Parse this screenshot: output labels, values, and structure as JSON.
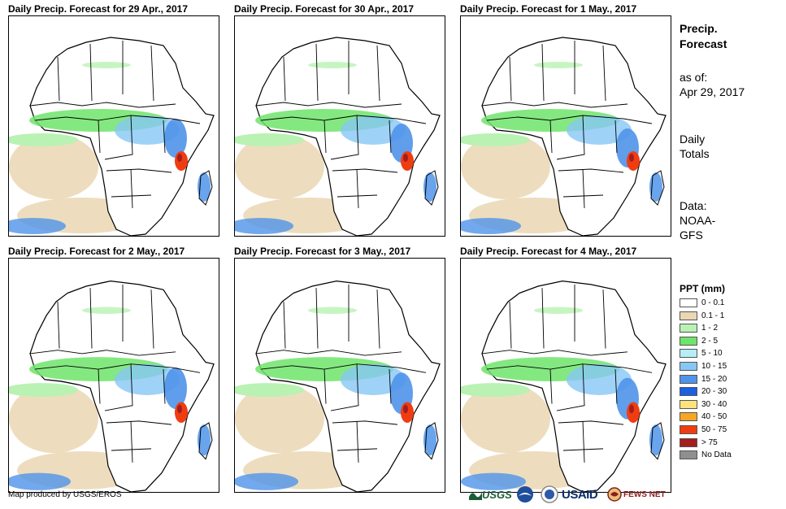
{
  "panels": [
    {
      "title": "Daily Precip. Forecast for 29 Apr., 2017"
    },
    {
      "title": "Daily Precip. Forecast for 30 Apr., 2017"
    },
    {
      "title": "Daily Precip. Forecast for 1 May., 2017"
    },
    {
      "title": "Daily Precip. Forecast for 2 May., 2017"
    },
    {
      "title": "Daily Precip. Forecast for 3 May., 2017"
    },
    {
      "title": "Daily Precip. Forecast for 4 May., 2017"
    }
  ],
  "sidebar": {
    "heading_line1": "Precip.",
    "heading_line2": "Forecast",
    "asof_label": "as of:",
    "asof_date": "Apr 29, 2017",
    "totals_line1": "Daily",
    "totals_line2": "Totals",
    "data_label": "Data:",
    "data_line1": "NOAA-",
    "data_line2": "GFS"
  },
  "legend": {
    "title": "PPT (mm)",
    "items": [
      {
        "label": "0 - 0.1",
        "color": "#ffffff"
      },
      {
        "label": "0.1 - 1",
        "color": "#ead7b3"
      },
      {
        "label": "1 - 2",
        "color": "#b9f2b3"
      },
      {
        "label": "2 - 5",
        "color": "#6ee46a"
      },
      {
        "label": "5 - 10",
        "color": "#b6eef7"
      },
      {
        "label": "10 - 15",
        "color": "#87c7f5"
      },
      {
        "label": "15 - 20",
        "color": "#4f94ea"
      },
      {
        "label": "20 - 30",
        "color": "#1c5fe0"
      },
      {
        "label": "30 - 40",
        "color": "#fde37f"
      },
      {
        "label": "40 - 50",
        "color": "#f6a623"
      },
      {
        "label": "50 - 75",
        "color": "#ef3d12"
      },
      {
        "label": "> 75",
        "color": "#a51d1d"
      },
      {
        "label": "No Data",
        "color": "#8f8f8f"
      }
    ]
  },
  "credit": "Map produced by USGS/EROS",
  "logos": {
    "usgs": "USGS",
    "usaid": "USAID",
    "fewsnet": "FEWS NET"
  }
}
